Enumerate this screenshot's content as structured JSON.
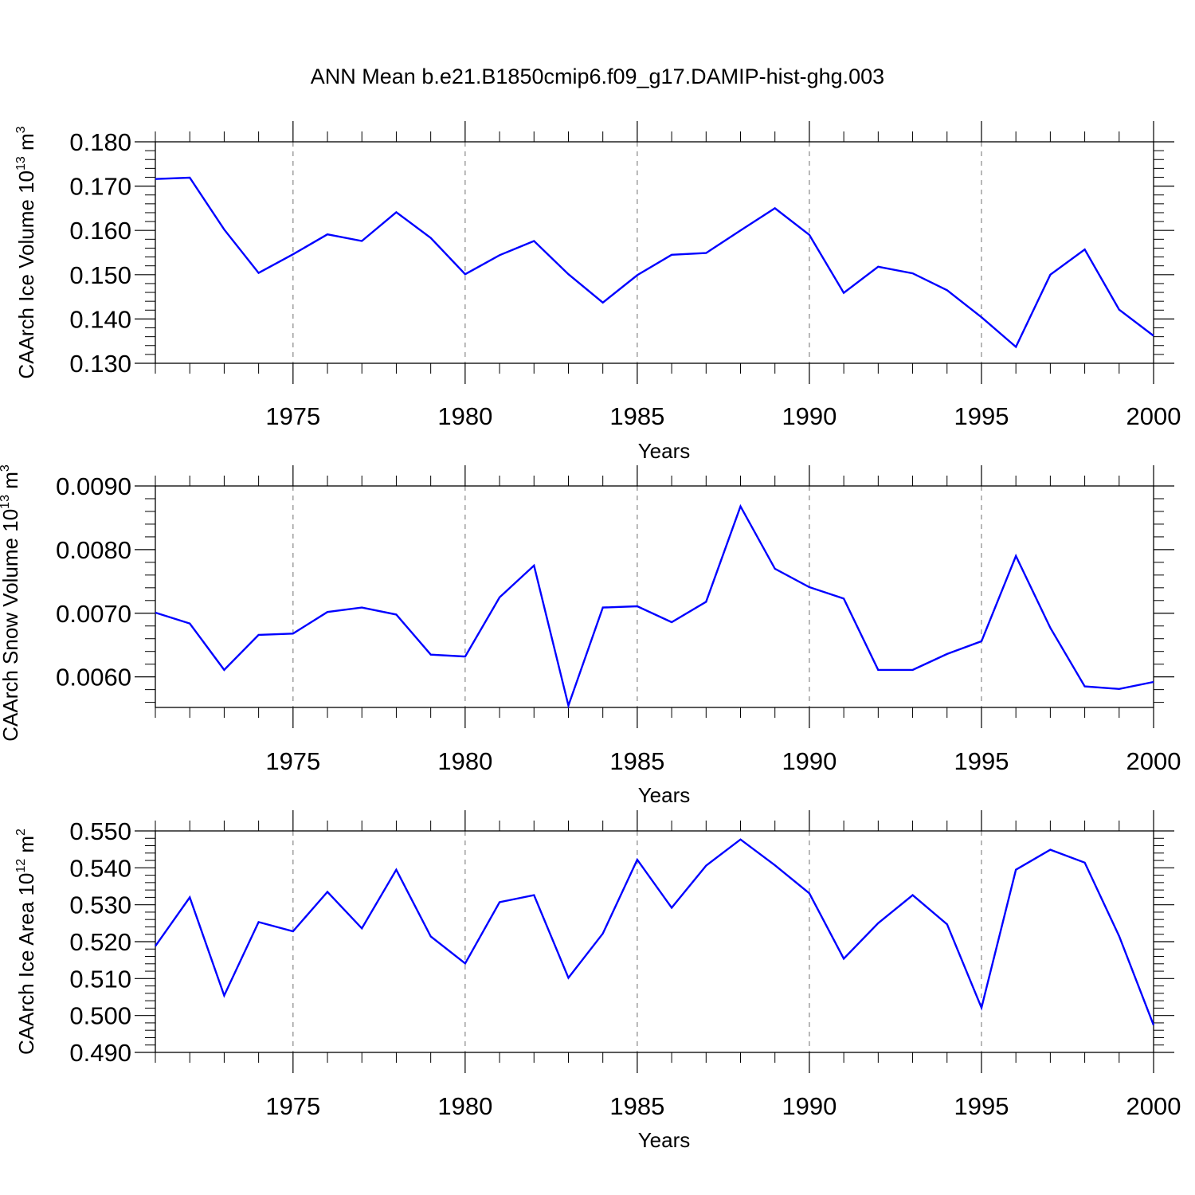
{
  "title": "ANN Mean b.e21.B1850cmip6.f09_g17.DAMIP-hist-ghg.003",
  "chart_data": [
    {
      "type": "line",
      "title": "ANN Mean b.e21.B1850cmip6.f09_g17.DAMIP-hist-ghg.003",
      "ylabel": {
        "base": "CAArch Ice Volume 10",
        "exponent": "13",
        "unit": " m",
        "unit_exponent": "3"
      },
      "xlabel": "Years",
      "xlim": [
        1971,
        2000
      ],
      "ylim": [
        0.13,
        0.18
      ],
      "xticks": [
        1975,
        1980,
        1985,
        1990,
        1995,
        2000
      ],
      "yticks": [
        0.13,
        0.14,
        0.15,
        0.16,
        0.17,
        0.18
      ],
      "ytick_labels": [
        "0.130",
        "0.140",
        "0.150",
        "0.160",
        "0.170",
        "0.180"
      ],
      "line_color": "#0000ff",
      "grid": "dashed vertical at major x ticks",
      "x": [
        1971,
        1972,
        1973,
        1974,
        1975,
        1976,
        1977,
        1978,
        1979,
        1980,
        1981,
        1982,
        1983,
        1984,
        1985,
        1986,
        1987,
        1988,
        1989,
        1990,
        1991,
        1992,
        1993,
        1994,
        1995,
        1996,
        1997,
        1998,
        1999,
        2000
      ],
      "values": [
        0.1716,
        0.1719,
        0.1602,
        0.1504,
        0.1546,
        0.1591,
        0.1576,
        0.1641,
        0.1583,
        0.1501,
        0.1544,
        0.1576,
        0.1501,
        0.1437,
        0.1499,
        0.1545,
        0.1549,
        0.16,
        0.165,
        0.159,
        0.1459,
        0.1518,
        0.1503,
        0.1465,
        0.1404,
        0.1337,
        0.15,
        0.1557,
        0.1421,
        0.1362
      ]
    },
    {
      "type": "line",
      "ylabel": {
        "base": "CAArch Snow Volume 10",
        "exponent": "13",
        "unit": " m",
        "unit_exponent": "3"
      },
      "xlabel": "Years",
      "xlim": [
        1971,
        2000
      ],
      "ylim": [
        0.00552,
        0.009
      ],
      "xticks": [
        1975,
        1980,
        1985,
        1990,
        1995,
        2000
      ],
      "yticks": [
        0.006,
        0.007,
        0.008,
        0.009
      ],
      "ytick_labels": [
        "0.0060",
        "0.0070",
        "0.0080",
        "0.0090"
      ],
      "line_color": "#0000ff",
      "grid": "dashed vertical at major x ticks",
      "x": [
        1971,
        1972,
        1973,
        1974,
        1975,
        1976,
        1977,
        1978,
        1979,
        1980,
        1981,
        1982,
        1983,
        1984,
        1985,
        1986,
        1987,
        1988,
        1989,
        1990,
        1991,
        1992,
        1993,
        1994,
        1995,
        1996,
        1997,
        1998,
        1999,
        2000
      ],
      "values": [
        0.00701,
        0.00684,
        0.00611,
        0.00666,
        0.00668,
        0.00702,
        0.00709,
        0.00698,
        0.00635,
        0.00632,
        0.00725,
        0.00775,
        0.00555,
        0.00709,
        0.00711,
        0.00686,
        0.00718,
        0.00868,
        0.0077,
        0.00741,
        0.00723,
        0.00611,
        0.00611,
        0.00636,
        0.00656,
        0.0079,
        0.00677,
        0.00585,
        0.00581,
        0.00592
      ]
    },
    {
      "type": "line",
      "ylabel": {
        "base": "CAArch Ice Area 10",
        "exponent": "12",
        "unit": " m",
        "unit_exponent": "2"
      },
      "xlabel": "Years",
      "xlim": [
        1971,
        2000
      ],
      "ylim": [
        0.49,
        0.55
      ],
      "xticks": [
        1975,
        1980,
        1985,
        1990,
        1995,
        2000
      ],
      "yticks": [
        0.49,
        0.5,
        0.51,
        0.52,
        0.53,
        0.54,
        0.55
      ],
      "ytick_labels": [
        "0.490",
        "0.500",
        "0.510",
        "0.520",
        "0.530",
        "0.540",
        "0.550"
      ],
      "line_color": "#0000ff",
      "grid": "dashed vertical at major x ticks",
      "x": [
        1971,
        1972,
        1973,
        1974,
        1975,
        1976,
        1977,
        1978,
        1979,
        1980,
        1981,
        1982,
        1983,
        1984,
        1985,
        1986,
        1987,
        1988,
        1989,
        1990,
        1991,
        1992,
        1993,
        1994,
        1995,
        1996,
        1997,
        1998,
        1999,
        2000
      ],
      "values": [
        0.5188,
        0.532,
        0.5054,
        0.5253,
        0.5228,
        0.5335,
        0.5236,
        0.5395,
        0.5214,
        0.5141,
        0.5307,
        0.5326,
        0.5102,
        0.5222,
        0.5422,
        0.5292,
        0.5406,
        0.5477,
        0.5407,
        0.5331,
        0.5154,
        0.525,
        0.5326,
        0.5247,
        0.5021,
        0.5395,
        0.5449,
        0.5414,
        0.5215,
        0.4974
      ]
    }
  ]
}
